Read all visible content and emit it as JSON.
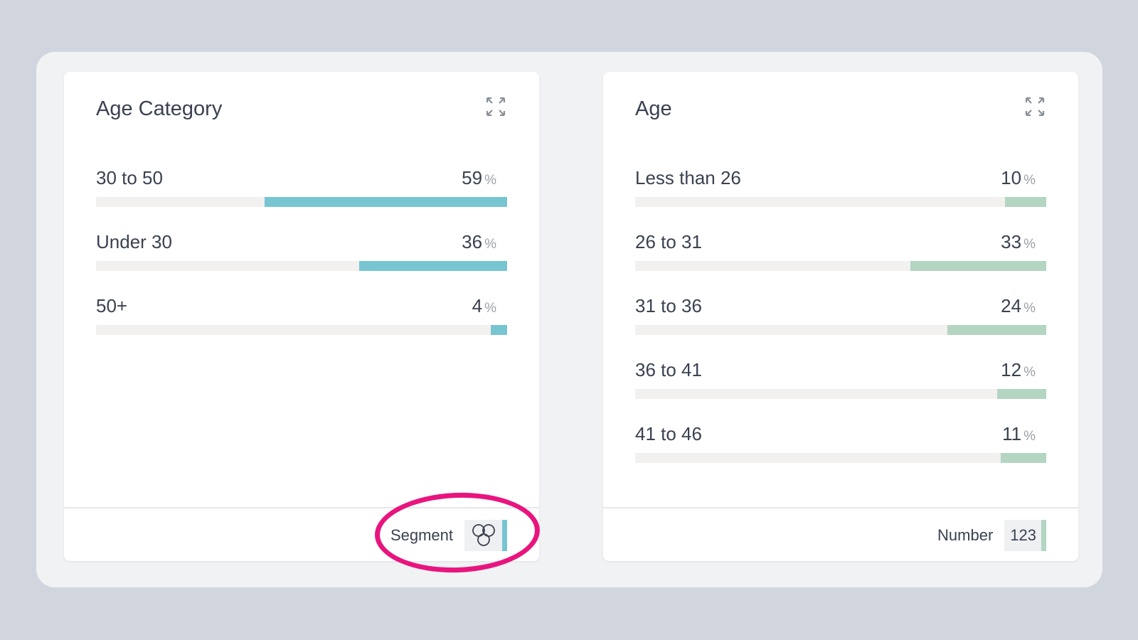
{
  "cards": [
    {
      "title": "Age Category",
      "color": "#77c5d1",
      "footer_label": "Segment",
      "footer_icon": "segment-circles-icon",
      "rows": [
        {
          "label": "30 to 50",
          "value": 59
        },
        {
          "label": "Under 30",
          "value": 36
        },
        {
          "label": "50+",
          "value": 4
        }
      ]
    },
    {
      "title": "Age",
      "color": "#b3d5c2",
      "footer_label": "Number",
      "footer_value": "123",
      "rows": [
        {
          "label": "Less than 26",
          "value": 10
        },
        {
          "label": "26 to 31",
          "value": 33
        },
        {
          "label": "31 to 36",
          "value": 24
        },
        {
          "label": "36 to 41",
          "value": 12
        },
        {
          "label": "41 to 46",
          "value": 11
        }
      ]
    }
  ],
  "percent_sign": "%",
  "annotation_color": "#e8157e"
}
